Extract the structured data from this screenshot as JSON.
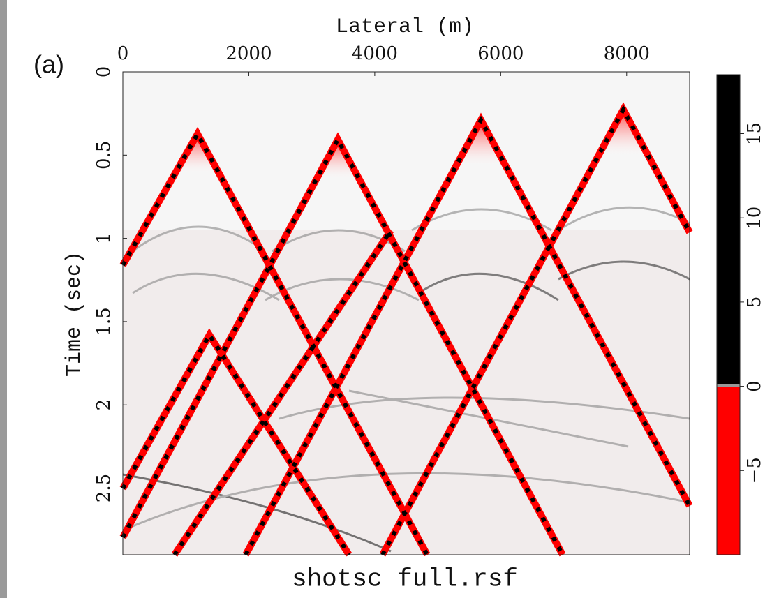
{
  "chart_data": {
    "type": "image",
    "panel_label": "(a)",
    "title": "shotsc full.rsf",
    "x_label": "Lateral (m)",
    "y_label": "Time (sec)",
    "xlim": [
      0,
      9000
    ],
    "xticks": [
      0,
      2000,
      4000,
      6000,
      8000
    ],
    "ylim": [
      0,
      2.9
    ],
    "yticks": [
      0,
      0.5,
      1,
      1.5,
      2,
      2.5
    ],
    "colorbar": {
      "lim": [
        -10,
        18.5
      ],
      "ticks": [
        {
          "value": -5,
          "label": "−5"
        },
        0,
        5,
        10,
        15
      ],
      "negative_color": "#ff0000",
      "positive_color": "#000000"
    }
  }
}
